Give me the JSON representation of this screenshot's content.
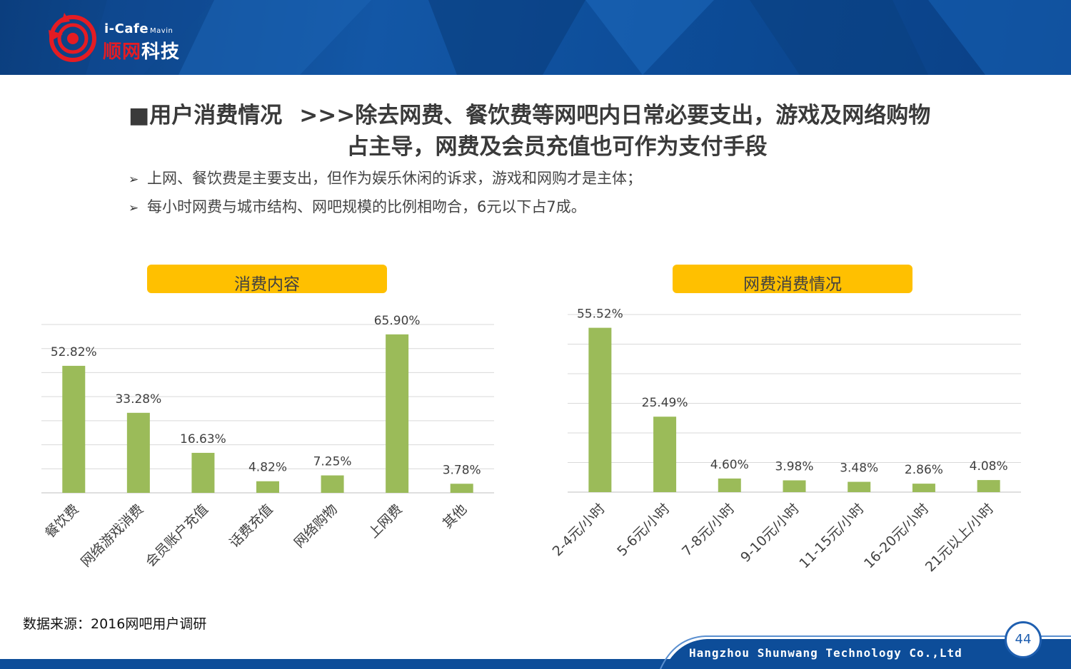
{
  "header": {
    "logo_top": "i-Cafe",
    "logo_sub": "Mavin",
    "logo_cn_red": "顺网",
    "logo_cn_white": "科技"
  },
  "title": {
    "line1_prefix": "■用户消费情况",
    "line1_rest": ">>>除去网费、餐饮费等网吧内日常必要支出，游戏及网络购物",
    "line2": "占主导，网费及会员充值也可作为支付手段"
  },
  "bullets": [
    "上网、餐饮费是主要支出，但作为娱乐休闲的诉求，游戏和网购才是主体；",
    "每小时网费与城市结构、网吧规模的比例相吻合，6元以下占7成。"
  ],
  "colors": {
    "bar": "#9bbb59",
    "pill": "#ffc000",
    "header": "#0d4d99"
  },
  "chart_data": [
    {
      "type": "bar",
      "title": "消费内容",
      "categories": [
        "餐饮费",
        "网络游戏消费",
        "会员账户充值",
        "话费充值",
        "网络购物",
        "上网费",
        "其他"
      ],
      "values": [
        52.82,
        33.28,
        16.63,
        4.82,
        7.25,
        65.9,
        3.78
      ],
      "labels": [
        "52.82%",
        "33.28%",
        "16.63%",
        "4.82%",
        "7.25%",
        "65.90%",
        "3.78%"
      ],
      "ylim": [
        0,
        70
      ],
      "grid": true
    },
    {
      "type": "bar",
      "title": "网费消费情况",
      "categories": [
        "2-4元/小时",
        "5-6元/小时",
        "7-8元/小时",
        "9-10元/小时",
        "11-15元/小时",
        "16-20元/小时",
        "21元以上/小时"
      ],
      "values": [
        55.52,
        25.49,
        4.6,
        3.98,
        3.48,
        2.86,
        4.08
      ],
      "labels": [
        "55.52%",
        "25.49%",
        "4.60%",
        "3.98%",
        "3.48%",
        "2.86%",
        "4.08%"
      ],
      "ylim": [
        0,
        60
      ],
      "grid": true
    }
  ],
  "source": "数据来源：2016网吧用户调研",
  "footer": {
    "company": "Hangzhou Shunwang Technology Co.,Ltd",
    "page": "44"
  }
}
